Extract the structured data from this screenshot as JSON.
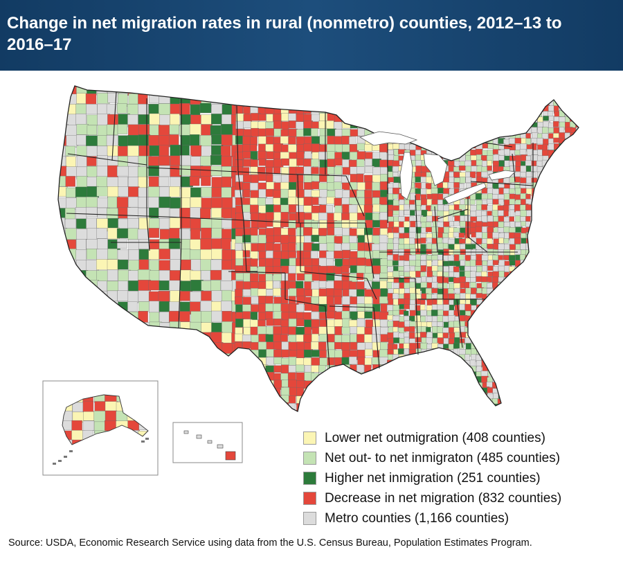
{
  "title": "Change in net migration rates in rural (nonmetro) counties, 2012–13 to 2016–17",
  "source": "Source: USDA, Economic Research Service using data from the U.S. Census Bureau, Population Estimates Program.",
  "legend": [
    {
      "label": "Lower net outmigration (408 counties)",
      "color": "#fbf5b4"
    },
    {
      "label": "Net out- to net inmigraton (485 counties)",
      "color": "#c4e3b4"
    },
    {
      "label": "Higher net inmigration (251 counties)",
      "color": "#2d7b3b"
    },
    {
      "label": "Decrease in net migration (832 counties)",
      "color": "#e4473b"
    },
    {
      "label": "Metro counties (1,166 counties)",
      "color": "#dcdcdc"
    }
  ],
  "colors": {
    "header_bg": "#1b4a76",
    "county_border": "#6b6b6b",
    "state_border": "#222222"
  }
}
